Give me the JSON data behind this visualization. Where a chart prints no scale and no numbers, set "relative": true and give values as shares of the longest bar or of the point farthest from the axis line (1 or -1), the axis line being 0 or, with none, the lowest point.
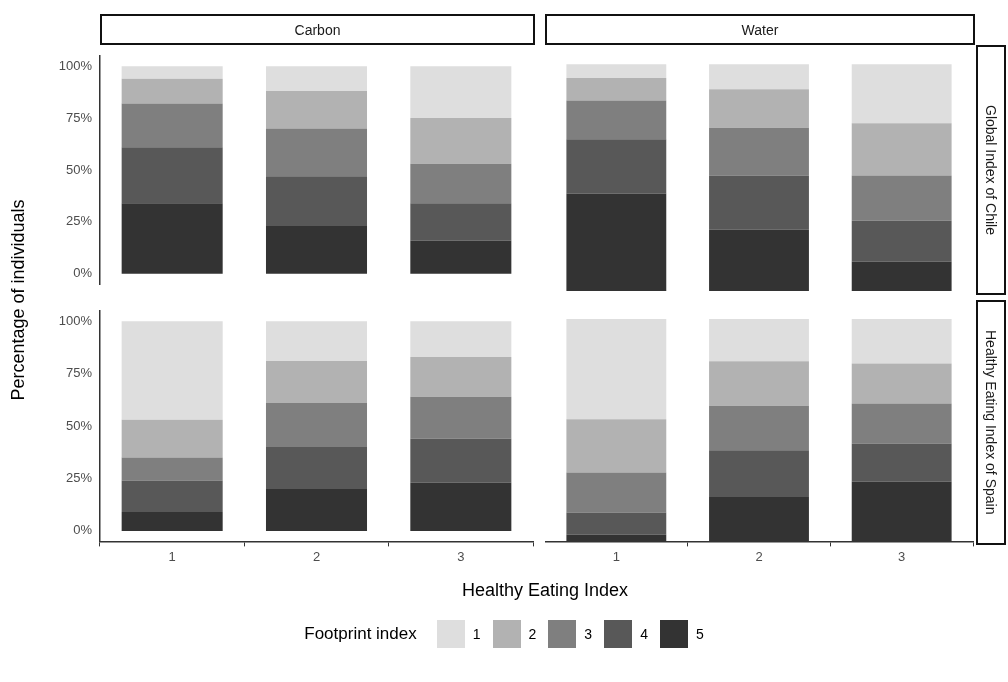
{
  "chart_data": [
    {
      "type": "bar",
      "title": "Carbon",
      "ylabel": "Percentage of individuals",
      "legend_title": "Footprint index",
      "legend": "bottom",
      "stacked": true,
      "tick_labels": "y",
      "categories": [
        "1",
        "2",
        "3"
      ],
      "ylim": [
        -5,
        105
      ],
      "yticks": [
        {
          "value": 0,
          "label": "0%"
        },
        {
          "value": 25,
          "label": "25%"
        },
        {
          "value": 50,
          "label": "50%"
        },
        {
          "value": 75,
          "label": "75%"
        },
        {
          "value": 100,
          "label": "100%"
        }
      ],
      "series": [
        {
          "name": "5",
          "color": "#333333",
          "values": [
            34,
            23,
            16
          ]
        },
        {
          "name": "4",
          "color": "#585858",
          "values": [
            27,
            24,
            18
          ]
        },
        {
          "name": "3",
          "color": "#7f7f7f",
          "values": [
            21,
            23,
            19
          ]
        },
        {
          "name": "2",
          "color": "#b2b2b2",
          "values": [
            12,
            18,
            22
          ]
        },
        {
          "name": "1",
          "color": "#dedede",
          "values": [
            6,
            12,
            25
          ]
        }
      ]
    },
    {
      "type": "bar",
      "title": "Water",
      "y2label": "Global Index of Chile",
      "stacked": true,
      "relative": true,
      "tick_labels": false,
      "categories": [
        "1",
        "2",
        "3"
      ],
      "series": [
        {
          "color": "#333333",
          "values": [
            0.43,
            0.27,
            0.13
          ]
        },
        {
          "color": "#585858",
          "values": [
            0.24,
            0.24,
            0.18
          ]
        },
        {
          "color": "#7f7f7f",
          "values": [
            0.17,
            0.21,
            0.2
          ]
        },
        {
          "color": "#b2b2b2",
          "values": [
            0.1,
            0.17,
            0.23
          ]
        },
        {
          "color": "#dedede",
          "values": [
            0.06,
            0.11,
            0.26
          ]
        }
      ]
    },
    {
      "type": "bar",
      "xlabel": "Healthy Eating Index",
      "stacked": true,
      "categories": [
        "1",
        "2",
        "3"
      ],
      "ylim": [
        -5,
        105
      ],
      "yticks": [
        {
          "value": 0,
          "label": "0%"
        },
        {
          "value": 25,
          "label": "25%"
        },
        {
          "value": 50,
          "label": "50%"
        },
        {
          "value": 75,
          "label": "75%"
        },
        {
          "value": 100,
          "label": "100%"
        }
      ],
      "series": [
        {
          "color": "#333333",
          "values": [
            9,
            20,
            23
          ]
        },
        {
          "color": "#585858",
          "values": [
            15,
            20,
            21
          ]
        },
        {
          "color": "#7f7f7f",
          "values": [
            11,
            21,
            20
          ]
        },
        {
          "color": "#b2b2b2",
          "values": [
            18,
            20,
            19
          ]
        },
        {
          "color": "#dedede",
          "values": [
            47,
            19,
            17
          ]
        }
      ]
    },
    {
      "type": "bar",
      "y2label": "Healthy Eating Index of Spain",
      "stacked": true,
      "relative": true,
      "tick_labels": "x",
      "categories": [
        "1",
        "2",
        "3"
      ],
      "series": [
        {
          "color": "#333333",
          "values": [
            0.03,
            0.2,
            0.27
          ]
        },
        {
          "color": "#585858",
          "values": [
            0.1,
            0.21,
            0.17
          ]
        },
        {
          "color": "#7f7f7f",
          "values": [
            0.18,
            0.2,
            0.18
          ]
        },
        {
          "color": "#b2b2b2",
          "values": [
            0.24,
            0.2,
            0.18
          ]
        },
        {
          "color": "#dedede",
          "values": [
            0.45,
            0.19,
            0.2
          ]
        }
      ]
    }
  ]
}
